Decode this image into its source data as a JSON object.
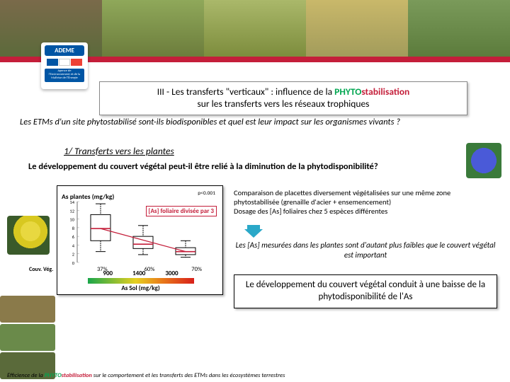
{
  "logo": {
    "name": "ADEME",
    "sub": "Agence de l'Environnement et de la Maîtrise de l'Énergie",
    "tri_colors": [
      "#0055a4",
      "#ffffff",
      "#ef4135"
    ]
  },
  "title": {
    "prefix": "III - Les transferts \"verticaux\" : influence de la ",
    "phyto": "PHYTO",
    "stab": "stabilisation",
    "line2": "sur les transferts vers les réseaux trophiques"
  },
  "question": "Les ETMs d'un site phytostabilisé sont-ils biodisponibles et quel est leur impact sur les organismes vivants ?",
  "section1": "1/ Transferts vers les plantes",
  "dev_question": "Le développement du couvert végétal peut-il être relié à la diminution de la phytodisponibilité?",
  "chart": {
    "title": "As plantes (mg/kg)",
    "pval": "p<0.001",
    "note": "[As] foliaire divisée par 3",
    "y_ticks": [
      0,
      2,
      4,
      6,
      8,
      10,
      12,
      14
    ],
    "ylim": [
      0,
      14
    ],
    "boxes": [
      {
        "x": 0,
        "q1": 5.0,
        "med": 7.8,
        "q3": 11.0,
        "wlo": 2.5,
        "whi": 13.5
      },
      {
        "x": 1,
        "q1": 3.2,
        "med": 4.2,
        "q3": 6.0,
        "wlo": 1.8,
        "whi": 8.5
      },
      {
        "x": 2,
        "q1": 1.8,
        "med": 2.5,
        "q3": 3.4,
        "wlo": 1.2,
        "whi": 5.0
      }
    ],
    "box_stroke": "#000000",
    "median_color": "#c41e3a",
    "x_label": "Couv. Vég.",
    "x_ticks": [
      "37%",
      "60%",
      "70%"
    ],
    "soil_vals": [
      "900",
      "1400",
      "3000"
    ],
    "soil_label": "As Sol (mg/kg)",
    "gradient_colors": [
      "#1aa64a",
      "#e6d020",
      "#e87a1a",
      "#d8201a"
    ]
  },
  "right_text1": "Comparaison de placettes diversement végétalisées sur une même zone phytostabilisée (grenaille d'acier + ensemencement)\nDosage des [As] foliaires chez 5 espèces différentes",
  "right_text2": "Les [As] mesurées dans les plantes sont d'autant plus faibles que le couvert végétal est important",
  "conclusion": "Le développement du couvert végétal conduit à une baisse de la phytodisponibilité de l'As",
  "arrow_color": "#2aa8c8",
  "footer": {
    "pre": "Efficience de la ",
    "phyto": "PHYTO",
    "stab": "stabilisation",
    "post": " sur le comportement et les transferts des ETMs dans les écosystèmes terrestres"
  },
  "bottom_photo_colors": [
    "#8a7a4a",
    "#6a8a4a",
    "#5a6a3a"
  ]
}
